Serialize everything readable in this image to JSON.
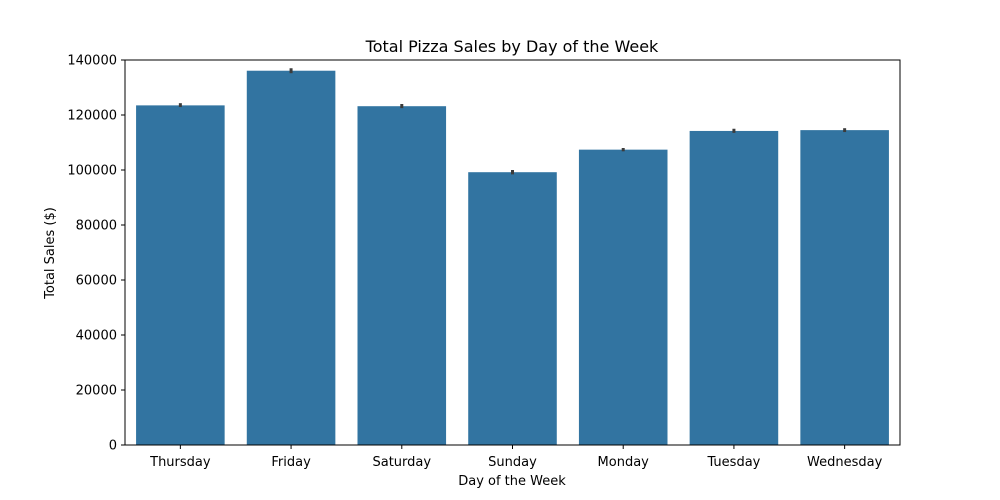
{
  "chart_data": {
    "type": "bar",
    "title": "Total Pizza Sales by Day of the Week",
    "xlabel": "Day of the Week",
    "ylabel": "Total Sales ($)",
    "categories": [
      "Thursday",
      "Friday",
      "Saturday",
      "Sunday",
      "Monday",
      "Tuesday",
      "Wednesday"
    ],
    "values": [
      123500,
      136100,
      123200,
      99200,
      107400,
      114200,
      114500
    ],
    "error_bars": [
      [
        122900,
        124300
      ],
      [
        135200,
        137000
      ],
      [
        122500,
        124000
      ],
      [
        98400,
        100000
      ],
      [
        106800,
        108000
      ],
      [
        113500,
        115000
      ],
      [
        113800,
        115200
      ]
    ],
    "ylim": [
      0,
      140000
    ],
    "yticks": [
      0,
      20000,
      40000,
      60000,
      80000,
      100000,
      120000,
      140000
    ],
    "ytick_labels": [
      "0",
      "20000",
      "40000",
      "60000",
      "80000",
      "100000",
      "120000",
      "140000"
    ],
    "grid": false,
    "bar_color": "#3274a1",
    "error_color": "#3b3b3b"
  }
}
